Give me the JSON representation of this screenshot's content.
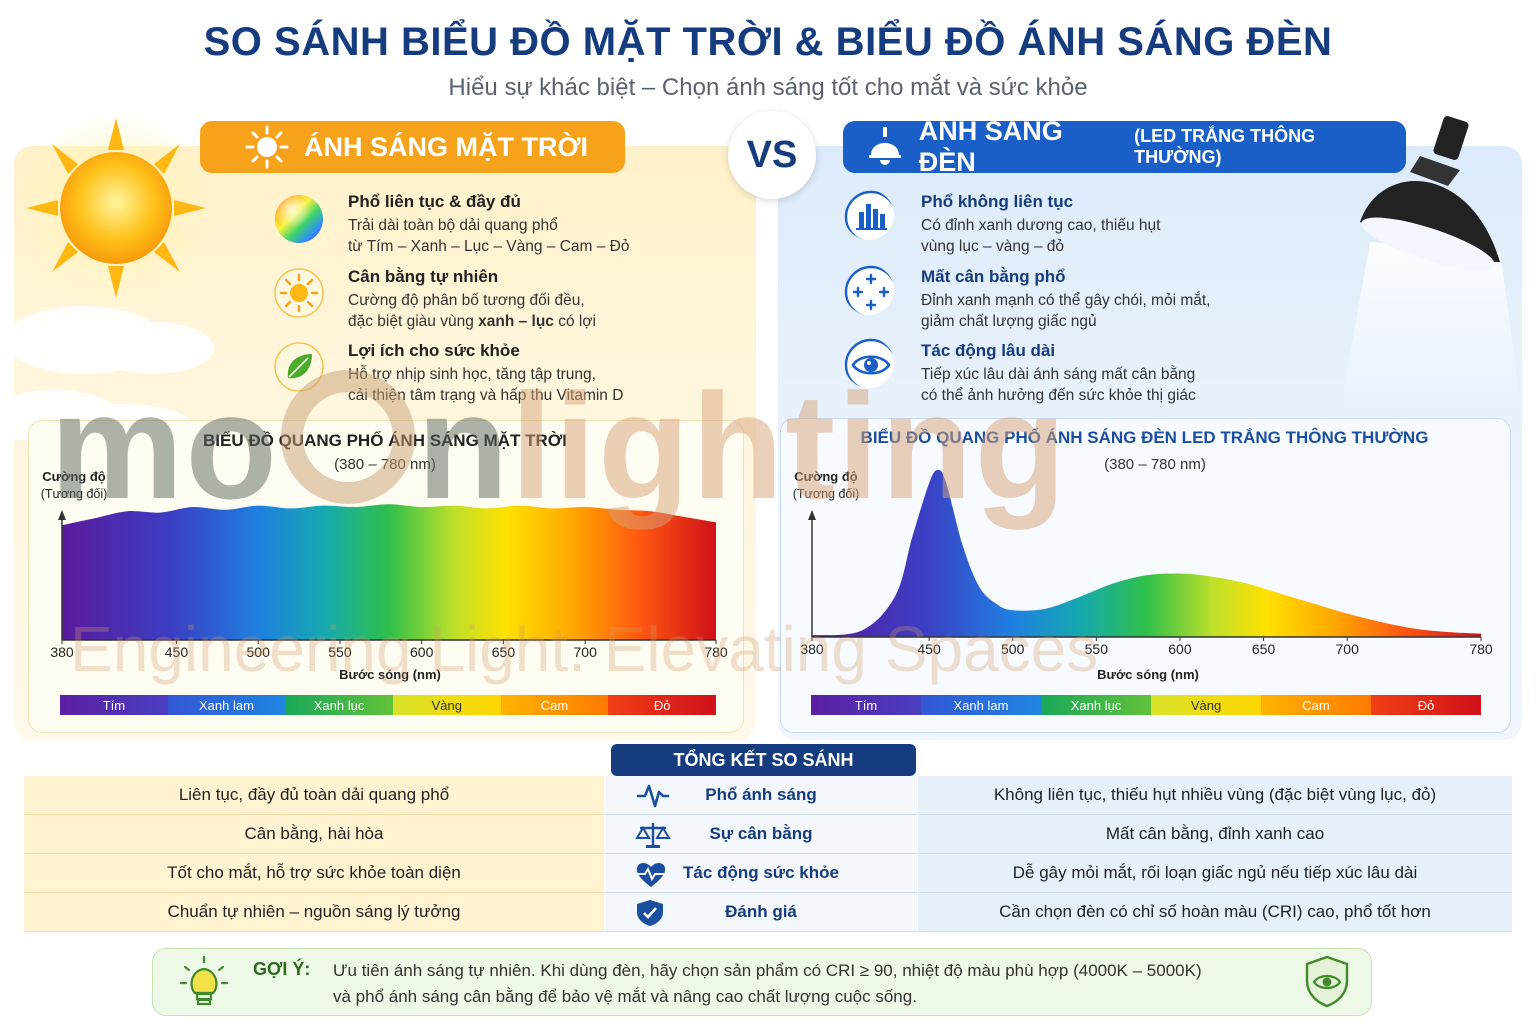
{
  "header": {
    "title": "SO SÁNH BIỂU ĐỒ MẶT TRỜI & BIỂU ĐỒ ÁNH SÁNG ĐÈN",
    "subtitle": "Hiểu sự khác biệt – Chọn ánh sáng tốt cho mắt và sức khỏe"
  },
  "vs_label": "VS",
  "sun_panel": {
    "title": "ÁNH SÁNG MẶT TRỜI",
    "features": [
      {
        "icon": "rainbow-sphere-icon",
        "heading": "Phổ liên tục & đầy đủ",
        "line1": "Trải dài toàn bộ dải quang phổ",
        "line2": "từ Tím – Xanh – Lục – Vàng – Cam – Đỏ"
      },
      {
        "icon": "sun-icon",
        "heading": "Cân bằng tự nhiên",
        "line1": "Cường độ phân bố tương đối đều,",
        "line2_pre": "đặc biệt giàu vùng ",
        "line2_bold": "xanh – lục",
        "line2_post": " có lợi"
      },
      {
        "icon": "leaf-icon",
        "heading": "Lợi ích cho sức khỏe",
        "line1": "Hỗ trợ nhịp sinh học, tăng tập trung,",
        "line2": "cải thiện tâm trạng và hấp thu Vitamin D"
      }
    ]
  },
  "led_panel": {
    "title": "ÁNH SÁNG ĐÈN",
    "title_small": "(LED TRẮNG THÔNG THƯỜNG)",
    "features": [
      {
        "icon": "bar-chart-icon",
        "heading": "Phổ không liên tục",
        "line1": "Có đỉnh xanh dương cao, thiếu hụt",
        "line2": "vùng lục – vàng – đỏ"
      },
      {
        "icon": "crosshair-icon",
        "heading": "Mất cân bằng phổ",
        "line1": "Đỉnh xanh mạnh có thể gây chói, mỏi mắt,",
        "line2": "giảm chất lượng giấc ngủ"
      },
      {
        "icon": "eye-icon",
        "heading": "Tác động lâu dài",
        "line1": "Tiếp xúc lâu dài ánh sáng mất cân bằng",
        "line2": "có thể ảnh hưởng đến sức khỏe thị giác"
      }
    ]
  },
  "chart_data": [
    {
      "type": "area",
      "title": "BIỂU ĐỒ QUANG PHỔ ÁNH SÁNG MẶT TRỜI",
      "subtitle": "(380 – 780 nm)",
      "ylabel": "Cường độ",
      "ylabel_sub": "(Tương đối)",
      "xlabel": "Bước sóng (nm)",
      "xlim": [
        380,
        780
      ],
      "ylim": [
        0,
        1
      ],
      "xticks": [
        380,
        450,
        500,
        550,
        600,
        650,
        700,
        780
      ],
      "x": [
        380,
        400,
        420,
        440,
        460,
        480,
        500,
        520,
        540,
        560,
        580,
        600,
        620,
        640,
        660,
        680,
        700,
        720,
        740,
        760,
        780
      ],
      "y": [
        0.82,
        0.87,
        0.92,
        0.91,
        0.95,
        0.93,
        0.96,
        0.94,
        0.96,
        0.95,
        0.97,
        0.95,
        0.96,
        0.94,
        0.96,
        0.94,
        0.95,
        0.93,
        0.92,
        0.88,
        0.84
      ],
      "bands": [
        "Tím",
        "Xanh lam",
        "Xanh lục",
        "Vàng",
        "Cam",
        "Đỏ"
      ]
    },
    {
      "type": "area",
      "title": "BIỂU ĐỒ QUANG PHỔ ÁNH SÁNG ĐÈN LED TRẮNG THÔNG THƯỜNG",
      "subtitle": "(380 – 780 nm)",
      "ylabel": "Cường độ",
      "ylabel_sub": "(Tương đối)",
      "xlabel": "Bước sóng (nm)",
      "xlim": [
        380,
        780
      ],
      "ylim": [
        0,
        1
      ],
      "xticks": [
        380,
        450,
        500,
        550,
        600,
        650,
        700,
        780
      ],
      "x": [
        380,
        410,
        430,
        440,
        450,
        455,
        460,
        470,
        480,
        490,
        500,
        520,
        540,
        560,
        580,
        600,
        620,
        640,
        660,
        680,
        700,
        720,
        740,
        760,
        780
      ],
      "y": [
        0.01,
        0.04,
        0.25,
        0.6,
        0.92,
        1.0,
        0.93,
        0.55,
        0.3,
        0.2,
        0.16,
        0.17,
        0.24,
        0.32,
        0.37,
        0.38,
        0.36,
        0.32,
        0.26,
        0.2,
        0.14,
        0.09,
        0.05,
        0.03,
        0.02
      ],
      "bands": [
        "Tím",
        "Xanh lam",
        "Xanh lục",
        "Vàng",
        "Cam",
        "Đỏ"
      ]
    }
  ],
  "summary": {
    "title": "TỔNG KẾT SO SÁNH",
    "rows": [
      {
        "icon": "pulse-icon",
        "left": "Liên tục, đầy đủ toàn dải quang phổ",
        "criterion": "Phổ ánh sáng",
        "right": "Không liên tục, thiếu hụt nhiều vùng (đặc biệt vùng lục, đỏ)"
      },
      {
        "icon": "scale-icon",
        "left": "Cân bằng, hài hòa",
        "criterion": "Sự cân bằng",
        "right": "Mất cân bằng, đỉnh xanh cao"
      },
      {
        "icon": "heart-pulse-icon",
        "left": "Tốt cho mắt, hỗ trợ sức khỏe toàn diện",
        "criterion": "Tác động sức khỏe",
        "right": "Dễ gây mỏi mắt, rối loạn giấc ngủ nếu tiếp xúc lâu dài"
      },
      {
        "icon": "shield-check-icon",
        "left": "Chuẩn tự nhiên – nguồn sáng lý tưởng",
        "criterion": "Đánh giá",
        "right": "Cần chọn đèn có chỉ số hoàn màu (CRI) cao, phổ tốt hơn"
      }
    ]
  },
  "tip": {
    "label": "GỢI Ý:",
    "line1": "Ưu tiên ánh sáng tự nhiên. Khi dùng đèn, hãy chọn sản phẩm có CRI ≥ 90, nhiệt độ màu phù hợp (4000K – 5000K)",
    "line2": "và phổ ánh sáng cân bằng để bảo vệ mắt và nâng cao chất lượng cuộc sống."
  },
  "watermark": {
    "brand_a": "mo",
    "brand_b": "n",
    "brand_c": "lighting",
    "tagline": "Engineering Light. Elevating Spaces"
  }
}
